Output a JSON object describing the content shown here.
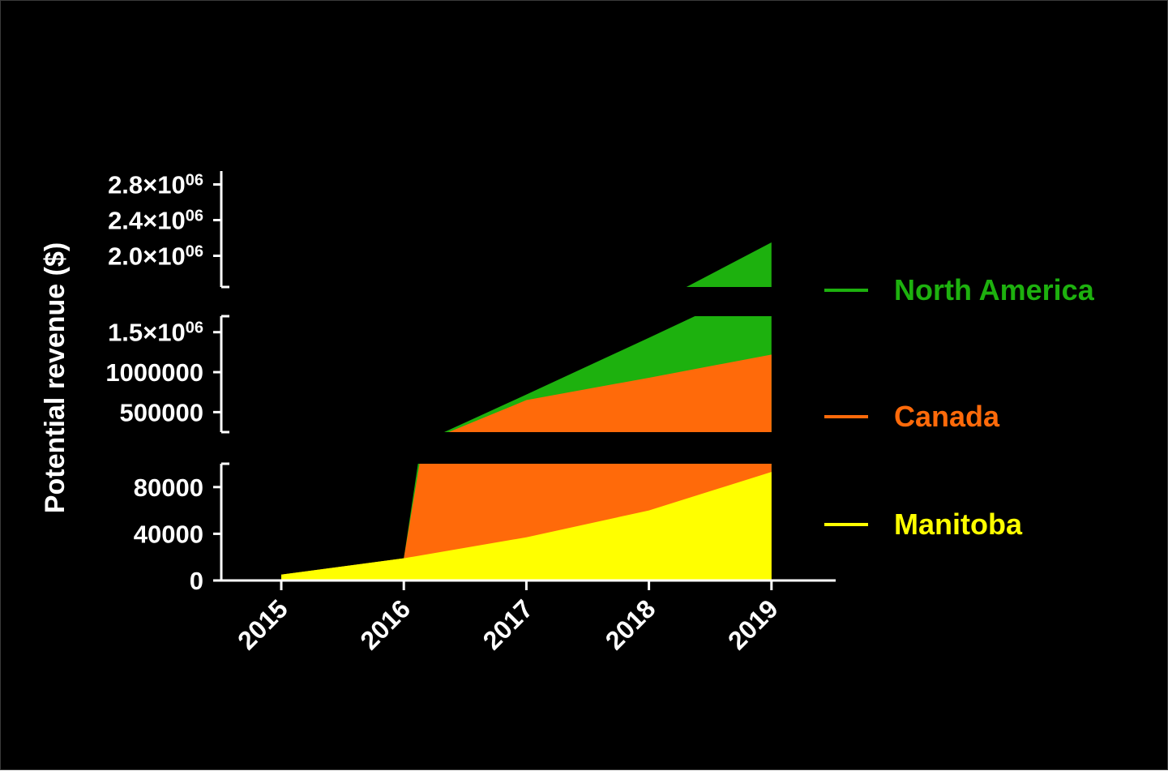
{
  "chart_data": {
    "type": "area",
    "title": "",
    "xlabel": "",
    "ylabel": "Potential revenue ($)",
    "categories": [
      "2015",
      "2016",
      "2017",
      "2018",
      "2019"
    ],
    "x": [
      2015,
      2016,
      2017,
      2018,
      2019
    ],
    "y_axis_broken": true,
    "y_segments": [
      {
        "ylim": [
          0,
          100000
        ],
        "ticks": [
          0,
          40000,
          80000
        ],
        "tick_labels": [
          "0",
          "40000",
          "80000"
        ]
      },
      {
        "ylim": [
          250000,
          1700000
        ],
        "ticks": [
          500000,
          1000000,
          1500000
        ],
        "tick_labels": [
          {
            "mantissa": "500000",
            "exponent": ""
          },
          {
            "mantissa": "1000000",
            "exponent": ""
          },
          {
            "mantissa": "1.5×10",
            "exponent": "06"
          }
        ]
      },
      {
        "ylim": [
          1650000,
          2950000
        ],
        "ticks": [
          2000000,
          2400000,
          2800000
        ],
        "tick_labels": [
          {
            "mantissa": "2.0×10",
            "exponent": "06"
          },
          {
            "mantissa": "2.4×10",
            "exponent": "06"
          },
          {
            "mantissa": "2.8×10",
            "exponent": "06"
          }
        ]
      }
    ],
    "series": [
      {
        "name": "North America",
        "color": "#1DB10E",
        "values": [
          5000,
          19000,
          720000,
          1430000,
          2150000
        ]
      },
      {
        "name": "Canada",
        "color": "#FF6A0A",
        "values": [
          5000,
          19000,
          650000,
          930000,
          1220000
        ]
      },
      {
        "name": "Manitoba",
        "color": "#FFFF00",
        "values": [
          5000,
          19000,
          37000,
          60000,
          93000
        ]
      }
    ],
    "legend_position": "right",
    "grid": false
  }
}
